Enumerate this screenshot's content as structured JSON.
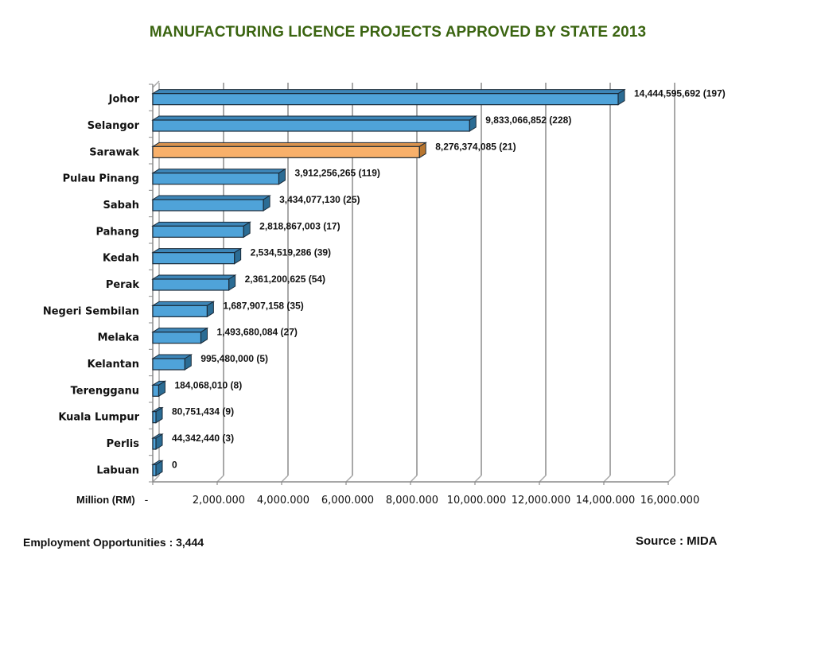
{
  "chart_data": {
    "type": "bar",
    "orientation": "horizontal",
    "style": "3d",
    "title": "MANUFACTURING LICENCE PROJECTS APPROVED BY STATE 2013",
    "xlabel": "Million (RM)",
    "ylabel": "",
    "xlim": [
      0,
      16000
    ],
    "x_ticks": [
      0,
      2000,
      4000,
      6000,
      8000,
      10000,
      12000,
      14000,
      16000
    ],
    "x_tick_labels": [
      "-",
      "2,000.000",
      "4,000.000",
      "6,000.000",
      "8,000.000",
      "10,000.000",
      "12,000.000",
      "14,000.000",
      "16,000.000"
    ],
    "grid": true,
    "legend": "none",
    "categories": [
      "Johor",
      "Selangor",
      "Sarawak",
      "Pulau Pinang",
      "Sabah",
      "Pahang",
      "Kedah",
      "Perak",
      "Negeri Sembilan",
      "Melaka",
      "Kelantan",
      "Terengganu",
      "Kuala Lumpur",
      "Perlis",
      "Labuan"
    ],
    "values_million_rm": [
      14444.595692,
      9833.066852,
      8276.374085,
      3912.256265,
      3434.07713,
      2818.867003,
      2534.519286,
      2361.200625,
      1687.907158,
      1493.680084,
      995.48,
      184.06801,
      80.751434,
      44.34244,
      0
    ],
    "data_labels": [
      "14,444,595,692 (197)",
      "9,833,066,852 (228)",
      "8,276,374,085 (21)",
      "3,912,256,265 (119)",
      "3,434,077,130 (25)",
      "2,818,867,003 (17)",
      "2,534,519,286 (39)",
      "2,361,200,625 (54)",
      "1,687,907,158 (35)",
      "1,493,680,084 (27)",
      "995,480,000 (5)",
      "184,068,010 (8)",
      "80,751,434 (9)",
      "44,342,440 (3)",
      "0"
    ],
    "project_counts": [
      197,
      228,
      21,
      119,
      25,
      17,
      39,
      54,
      35,
      27,
      5,
      8,
      9,
      3,
      null
    ],
    "highlighted_category": "Sarawak",
    "colors": {
      "bar": "#4fa3d9",
      "bar_side": "#2b6c94",
      "bar_top": "#3d86b8",
      "highlight": "#f8b06a",
      "highlight_side": "#b87630",
      "highlight_top": "#d9924e",
      "outline": "#1a2a38",
      "grid": "#a8a8a8",
      "title": "#3a6410"
    }
  },
  "footer": {
    "employment": "Employment Opportunities : 3,444",
    "source": "Source : MIDA"
  }
}
